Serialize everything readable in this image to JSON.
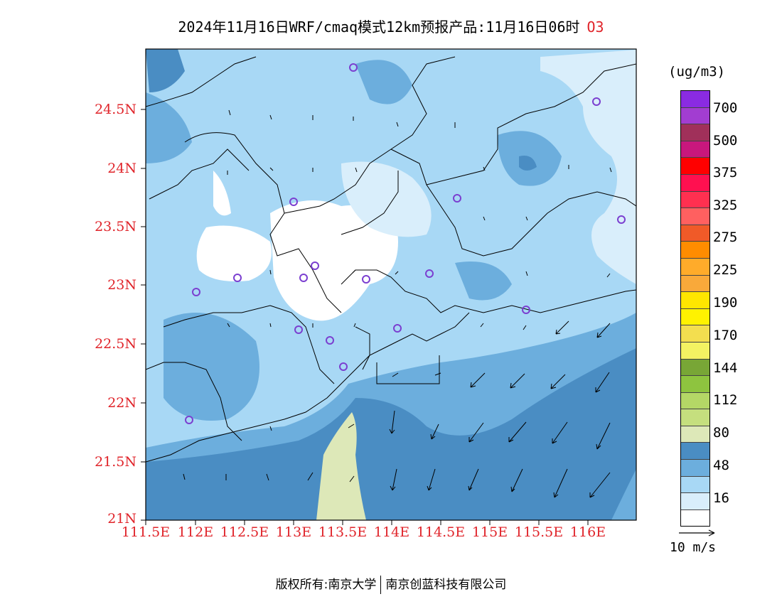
{
  "title": {
    "main": "2024年11月16日WRF/cmaq模式12km预报产品:11月16日06时",
    "species": "O3"
  },
  "map": {
    "lat_labels": [
      "24.5N",
      "24N",
      "23.5N",
      "23N",
      "22.5N",
      "22N",
      "21.5N",
      "21N"
    ],
    "lon_labels": [
      "111.5E",
      "112E",
      "112.5E",
      "113E",
      "113.5E",
      "114E",
      "114.5E",
      "115E",
      "115.5E",
      "116E"
    ]
  },
  "legend": {
    "unit": "(ug/m3)",
    "colors": [
      "#8a2be2",
      "#a23dd1",
      "#a0305a",
      "#c8177d",
      "#ff0000",
      "#ff1050",
      "#ff3050",
      "#ff6060",
      "#f05a28",
      "#ff8c00",
      "#ffab2a",
      "#f9a93a",
      "#ffe600",
      "#fff200",
      "#f3de4f",
      "#f3f262",
      "#78a636",
      "#8ec43f",
      "#b4d766",
      "#c5df7e",
      "#dde8b8",
      "#4a8dc3",
      "#6caedd",
      "#a8d8f5",
      "#d9eefb",
      "#ffffff"
    ],
    "labels": [
      "700",
      "500",
      "375",
      "325",
      "275",
      "225",
      "190",
      "170",
      "144",
      "112",
      "80",
      "48",
      "16"
    ],
    "colors_hex": {
      "water_deep": "#4a8dc3",
      "water_mid": "#6caedd",
      "land_light": "#a8d8f5",
      "land_pale": "#d9eefb",
      "bay": "#dde8b8",
      "stations": "#7b3fd0"
    }
  },
  "vector": {
    "label": "10 m/s"
  },
  "footer": {
    "left": "版权所有:南京大学",
    "right": "南京创蓝科技有限公司"
  }
}
